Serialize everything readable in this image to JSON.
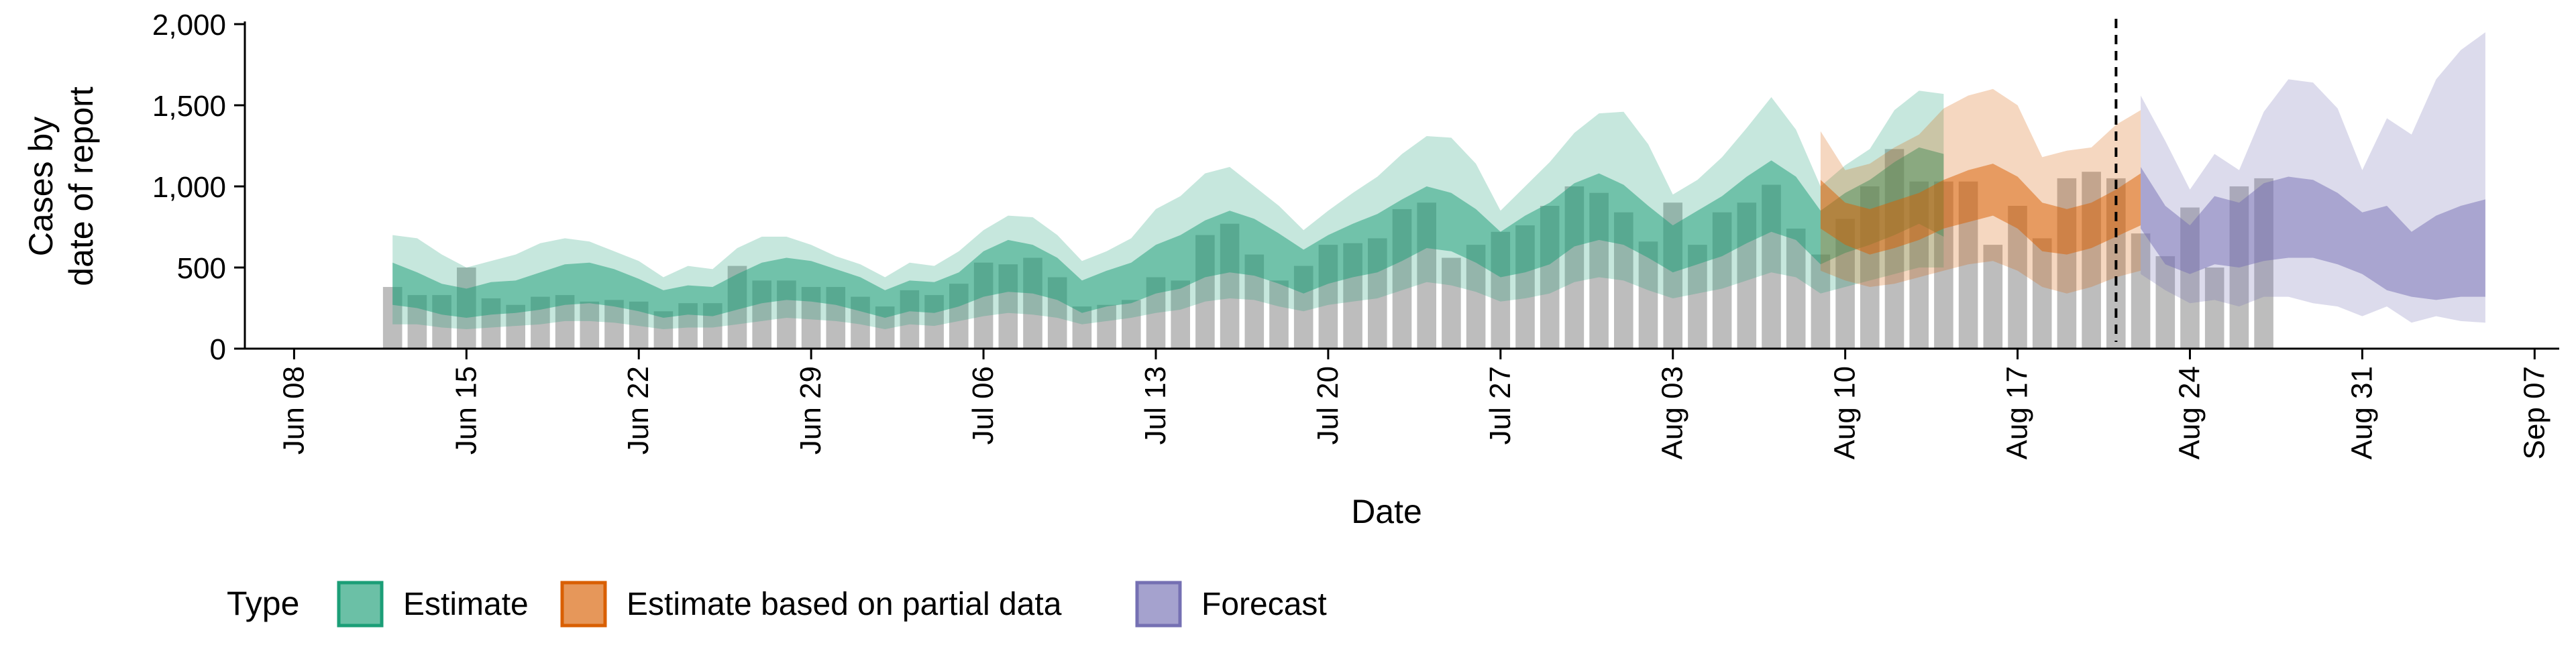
{
  "chart_data": {
    "type": "area",
    "xlabel": "Date",
    "ylabel_lines": [
      "Cases by",
      "date of report"
    ],
    "ylim": [
      0,
      2000
    ],
    "yticks": [
      0,
      500,
      1000,
      1500,
      2000
    ],
    "ytick_labels": [
      "0",
      "500",
      "1,000",
      "1,500",
      "2,000"
    ],
    "x_domain": [
      "2020-06-06",
      "2020-09-08"
    ],
    "xticks": [
      "2020-06-08",
      "2020-06-15",
      "2020-06-22",
      "2020-06-29",
      "2020-07-06",
      "2020-07-13",
      "2020-07-20",
      "2020-07-27",
      "2020-08-03",
      "2020-08-10",
      "2020-08-17",
      "2020-08-24",
      "2020-08-31",
      "2020-09-07"
    ],
    "xtick_labels": [
      "Jun 08",
      "Jun 15",
      "Jun 22",
      "Jun 29",
      "Jul 06",
      "Jul 13",
      "Jul 20",
      "Jul 27",
      "Aug 03",
      "Aug 10",
      "Aug 17",
      "Aug 24",
      "Aug 31",
      "Sep 07"
    ],
    "legend_position": "bottom",
    "legend_title": "Type",
    "legend_items": [
      {
        "label": "Estimate",
        "color": "#1b9e77"
      },
      {
        "label": "Estimate based on partial data",
        "color": "#d95f02"
      },
      {
        "label": "Forecast",
        "color": "#7570b3"
      }
    ],
    "vline_date": "2020-08-21",
    "bar_color": "#bdbdbd",
    "bars": {
      "start_date": "2020-06-12",
      "values": [
        380,
        330,
        330,
        500,
        310,
        270,
        320,
        330,
        290,
        300,
        290,
        230,
        280,
        280,
        510,
        420,
        420,
        380,
        380,
        320,
        260,
        360,
        330,
        400,
        530,
        520,
        560,
        440,
        260,
        270,
        300,
        440,
        420,
        700,
        770,
        580,
        420,
        510,
        640,
        650,
        680,
        860,
        900,
        560,
        640,
        720,
        760,
        880,
        1000,
        960,
        840,
        660,
        900,
        640,
        840,
        900,
        1010,
        740,
        580,
        800,
        1000,
        1230,
        1030,
        1030,
        1030,
        640,
        880,
        680,
        1050,
        1090,
        1050,
        710,
        570,
        870,
        500,
        1000,
        1050
      ]
    },
    "series": [
      {
        "name": "Estimate",
        "color": "#1b9e77",
        "start_date": "2020-06-12",
        "median": [
          320,
          280,
          240,
          220,
          250,
          260,
          290,
          320,
          330,
          300,
          270,
          220,
          240,
          230,
          280,
          330,
          360,
          340,
          310,
          270,
          220,
          270,
          260,
          300,
          380,
          420,
          400,
          350,
          260,
          300,
          330,
          400,
          440,
          520,
          560,
          540,
          470,
          400,
          480,
          520,
          560,
          640,
          740,
          720,
          640,
          520,
          560,
          620,
          750,
          800,
          760,
          660,
          560,
          620,
          680,
          780,
          860,
          800,
          620,
          700,
          760,
          840,
          920,
          820
        ],
        "inner_lower": [
          270,
          250,
          210,
          190,
          210,
          220,
          240,
          270,
          280,
          260,
          230,
          190,
          210,
          200,
          240,
          280,
          300,
          290,
          270,
          230,
          190,
          230,
          220,
          260,
          320,
          350,
          340,
          300,
          220,
          260,
          280,
          340,
          370,
          440,
          470,
          450,
          400,
          340,
          400,
          440,
          470,
          540,
          620,
          600,
          530,
          440,
          470,
          520,
          630,
          670,
          640,
          560,
          470,
          520,
          570,
          650,
          720,
          670,
          520,
          590,
          640,
          700,
          770,
          690
        ],
        "inner_upper": [
          530,
          470,
          400,
          370,
          410,
          420,
          470,
          520,
          530,
          490,
          430,
          360,
          390,
          380,
          460,
          530,
          560,
          540,
          490,
          440,
          360,
          420,
          410,
          470,
          600,
          670,
          640,
          560,
          420,
          480,
          530,
          640,
          700,
          790,
          850,
          800,
          710,
          610,
          700,
          770,
          830,
          920,
          1000,
          960,
          860,
          720,
          820,
          900,
          1020,
          1080,
          1010,
          880,
          760,
          850,
          940,
          1060,
          1160,
          1060,
          850,
          960,
          1040,
          1150,
          1240,
          1200
        ],
        "outer_lower": [
          150,
          150,
          130,
          120,
          130,
          140,
          150,
          170,
          170,
          160,
          140,
          120,
          130,
          130,
          150,
          170,
          190,
          180,
          170,
          150,
          120,
          150,
          140,
          170,
          200,
          220,
          210,
          190,
          150,
          170,
          190,
          220,
          240,
          290,
          310,
          300,
          260,
          230,
          270,
          290,
          310,
          360,
          410,
          390,
          350,
          290,
          310,
          340,
          410,
          440,
          420,
          360,
          310,
          340,
          370,
          420,
          470,
          440,
          340,
          380,
          420,
          460,
          500,
          500
        ],
        "outer_upper": [
          700,
          680,
          580,
          500,
          540,
          580,
          650,
          680,
          660,
          600,
          540,
          440,
          510,
          490,
          620,
          690,
          690,
          640,
          570,
          520,
          440,
          530,
          510,
          600,
          730,
          820,
          810,
          700,
          540,
          600,
          680,
          860,
          940,
          1080,
          1120,
          1000,
          880,
          730,
          850,
          960,
          1060,
          1200,
          1310,
          1300,
          1140,
          850,
          1000,
          1150,
          1330,
          1450,
          1460,
          1260,
          950,
          1040,
          1180,
          1360,
          1550,
          1350,
          1000,
          1130,
          1230,
          1470,
          1590,
          1570
        ]
      },
      {
        "name": "Estimate based on partial data",
        "color": "#d95f02",
        "start_date": "2020-08-09",
        "median": [
          880,
          760,
          720,
          760,
          800,
          880,
          940,
          980,
          900,
          760,
          720,
          760,
          830,
          900
        ],
        "inner_lower": [
          740,
          640,
          580,
          620,
          670,
          740,
          780,
          820,
          740,
          600,
          580,
          620,
          690,
          760
        ],
        "inner_upper": [
          1040,
          900,
          860,
          910,
          960,
          1040,
          1100,
          1140,
          1060,
          900,
          860,
          900,
          980,
          1080
        ],
        "outer_lower": [
          480,
          420,
          380,
          400,
          440,
          480,
          520,
          540,
          480,
          380,
          340,
          380,
          440,
          480
        ],
        "outer_upper": [
          1340,
          1100,
          1140,
          1240,
          1320,
          1480,
          1560,
          1600,
          1500,
          1180,
          1220,
          1240,
          1380,
          1470
        ]
      },
      {
        "name": "Forecast",
        "color": "#7570b3",
        "start_date": "2020-08-22",
        "median": [
          900,
          760,
          640,
          780,
          720,
          820,
          880,
          900,
          820,
          720,
          680,
          700,
          740,
          640,
          620
        ],
        "inner_lower": [
          740,
          520,
          460,
          520,
          500,
          540,
          560,
          560,
          520,
          460,
          360,
          320,
          300,
          320,
          320
        ],
        "inner_upper": [
          1120,
          880,
          760,
          940,
          900,
          1020,
          1060,
          1040,
          960,
          840,
          880,
          720,
          820,
          880,
          920
        ],
        "outer_lower": [
          460,
          360,
          280,
          300,
          260,
          320,
          320,
          280,
          260,
          200,
          260,
          160,
          200,
          170,
          160
        ],
        "outer_upper": [
          1560,
          1280,
          980,
          1200,
          1100,
          1460,
          1660,
          1640,
          1480,
          1100,
          1420,
          1320,
          1660,
          1840,
          1950
        ]
      }
    ]
  }
}
